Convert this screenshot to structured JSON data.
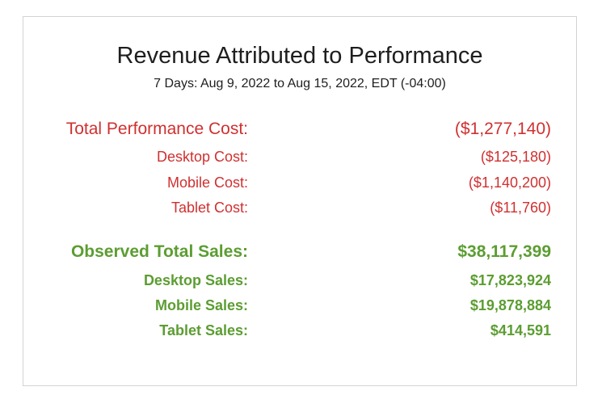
{
  "report": {
    "title": "Revenue Attributed to Performance",
    "subtitle": "7 Days: Aug 9, 2022 to Aug 15, 2022, EDT (-04:00)"
  },
  "colors": {
    "cost": "#d03030",
    "sales": "#5c9d32",
    "text": "#1e1e1e",
    "border": "#d3d3d3"
  },
  "cost": {
    "total": {
      "label": "Total Performance Cost:",
      "value": "($1,277,140)"
    },
    "desktop": {
      "label": "Desktop Cost:",
      "value": "($125,180)"
    },
    "mobile": {
      "label": "Mobile Cost:",
      "value": "($1,140,200)"
    },
    "tablet": {
      "label": "Tablet Cost:",
      "value": "($11,760)"
    }
  },
  "sales": {
    "total": {
      "label": "Observed Total Sales:",
      "value": "$38,117,399"
    },
    "desktop": {
      "label": "Desktop Sales:",
      "value": "$17,823,924"
    },
    "mobile": {
      "label": "Mobile Sales:",
      "value": "$19,878,884"
    },
    "tablet": {
      "label": "Tablet Sales:",
      "value": "$414,591"
    }
  }
}
